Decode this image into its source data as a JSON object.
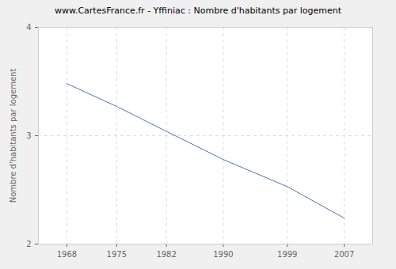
{
  "chart_data": {
    "type": "line",
    "title": "www.CartesFrance.fr - Yffiniac : Nombre d'habitants par logement",
    "y_label": "Nombre d'habitants par logement",
    "x": [
      1968,
      1975,
      1982,
      1990,
      1999,
      2007
    ],
    "values": [
      3.48,
      3.27,
      3.04,
      2.78,
      2.53,
      2.24
    ],
    "color": "#4f77aa",
    "xlim": [
      1964,
      2011
    ],
    "xticks": [
      1968,
      1975,
      1982,
      1990,
      1999,
      2007
    ],
    "ylim": [
      2,
      4
    ],
    "yticks": [
      2,
      3,
      4
    ],
    "grid": true
  }
}
